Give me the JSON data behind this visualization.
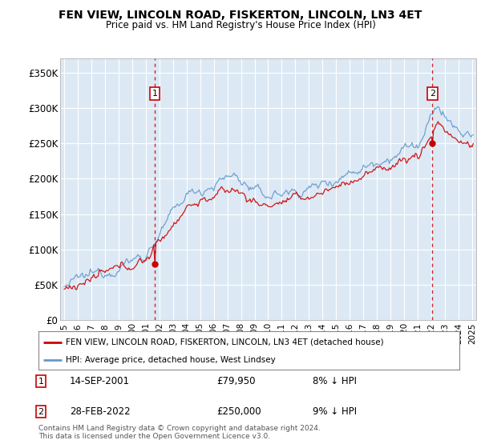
{
  "title": "FEN VIEW, LINCOLN ROAD, FISKERTON, LINCOLN, LN3 4ET",
  "subtitle": "Price paid vs. HM Land Registry's House Price Index (HPI)",
  "ylabel_ticks": [
    "£0",
    "£50K",
    "£100K",
    "£150K",
    "£200K",
    "£250K",
    "£300K",
    "£350K"
  ],
  "ylim": [
    0,
    370000
  ],
  "xlim_start": 1994.7,
  "xlim_end": 2025.3,
  "bg_color": "#dce9f5",
  "grid_color": "#ffffff",
  "sale1_date": 2001.71,
  "sale1_price": 79950,
  "sale2_date": 2022.16,
  "sale2_price": 250000,
  "legend_line1": "FEN VIEW, LINCOLN ROAD, FISKERTON, LINCOLN, LN3 4ET (detached house)",
  "legend_line2": "HPI: Average price, detached house, West Lindsey",
  "footnote": "Contains HM Land Registry data © Crown copyright and database right 2024.\nThis data is licensed under the Open Government Licence v3.0.",
  "line_color_red": "#cc0000",
  "line_color_blue": "#6699cc",
  "sale_box_color": "#cc0000"
}
